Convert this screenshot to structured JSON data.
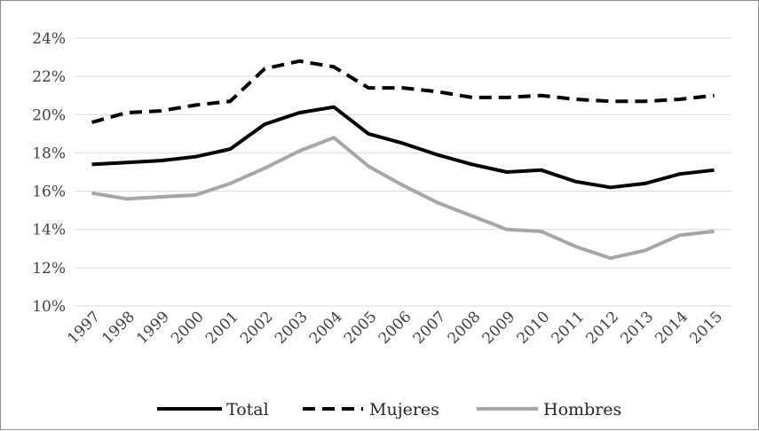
{
  "chart_data": {
    "type": "line",
    "title": "",
    "xlabel": "",
    "ylabel": "",
    "x": [
      "1997",
      "1998",
      "1999",
      "2000",
      "2001",
      "2002",
      "2003",
      "2004",
      "2005",
      "2006",
      "2007",
      "2008",
      "2009",
      "2010",
      "2011",
      "2012",
      "2013",
      "2014",
      "2015"
    ],
    "ylim": [
      10,
      24
    ],
    "yticks": [
      10,
      12,
      14,
      16,
      18,
      20,
      22,
      24
    ],
    "ytick_labels": [
      "10%",
      "12%",
      "14%",
      "16%",
      "18%",
      "20%",
      "22%",
      "24%"
    ],
    "grid": "horizontal",
    "legend_position": "bottom",
    "series": [
      {
        "name": "Total",
        "color": "#000000",
        "dash": "solid",
        "values": [
          17.4,
          17.5,
          17.6,
          17.8,
          18.2,
          19.5,
          20.1,
          20.4,
          19.0,
          18.5,
          17.9,
          17.4,
          17.0,
          17.1,
          16.5,
          16.2,
          16.4,
          16.9,
          17.1
        ]
      },
      {
        "name": "Mujeres",
        "color": "#000000",
        "dash": "dashed",
        "values": [
          19.6,
          20.1,
          20.2,
          20.5,
          20.7,
          22.4,
          22.8,
          22.5,
          21.4,
          21.4,
          21.2,
          20.9,
          20.9,
          21.0,
          20.8,
          20.7,
          20.7,
          20.8,
          21.0
        ]
      },
      {
        "name": "Hombres",
        "color": "#a6a6a6",
        "dash": "solid",
        "values": [
          15.9,
          15.6,
          15.7,
          15.8,
          16.4,
          17.2,
          18.1,
          18.8,
          17.3,
          16.3,
          15.4,
          14.7,
          14.0,
          13.9,
          13.1,
          12.5,
          12.9,
          13.7,
          13.9
        ]
      }
    ]
  }
}
